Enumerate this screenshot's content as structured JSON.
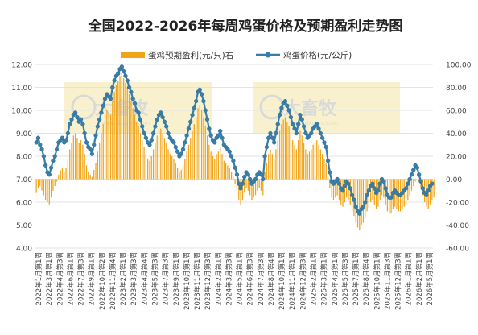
{
  "chart_data": {
    "type": "bar+line",
    "title": "全国2022-2026年每周鸡蛋价格及预期盈利走势图",
    "legend": {
      "placement": "top",
      "bar_label": "蛋鸡预期盈利(元/只)右",
      "line_label": "鸡蛋价格(元/公斤)"
    },
    "watermark": "大畜牧 www.dxumu.com",
    "y_left": {
      "min": 4.0,
      "max": 12.0,
      "ticks": [
        "4.00",
        "5.00",
        "6.00",
        "7.00",
        "8.00",
        "9.00",
        "10.00",
        "11.00",
        "12.00"
      ]
    },
    "y_right": {
      "min": -60,
      "max": 100,
      "ticks": [
        "-60.00",
        "-40.00",
        "-20.00",
        "0.00",
        "20.00",
        "40.00",
        "60.00",
        "80.00",
        "100.00"
      ]
    },
    "x_tick_labels": [
      "2022年1月第1周",
      "2022年3月第1周",
      "2022年4月第3周",
      "2022年6月第1周",
      "2022年7月第3周",
      "2022年9月第1周",
      "2022年10月第2周",
      "2022年11月第4周",
      "2023年2月第1周",
      "2023年3月第3周",
      "2023年4月第4周",
      "2023年5月第3周",
      "2023年7月第3周",
      "2023年9月第1周",
      "2023年10月第1周",
      "2023年11月第1周",
      "2023年12月第3周",
      "2024年2月第1周",
      "2024年3月第3周",
      "2024年5月第1周",
      "2024年6月第3周",
      "2024年7月第3周",
      "2024年8月第4周",
      "2024年10月第1周",
      "2024年11月第1周",
      "2024年12月第3周",
      "2025年2月第1周",
      "2025年3月第1周",
      "2025年4月第1周",
      "2025年5月第3周",
      "2025年7月第1周",
      "2025年8月第4周",
      "2025年10月第1周",
      "2025年11月第3周",
      "2025年12月第3周",
      "2026年1月第1周",
      "2026年2月第1周",
      "2026年5月第1周"
    ],
    "egg_price": [
      8.6,
      8.8,
      8.5,
      8.3,
      8.0,
      7.6,
      7.3,
      7.2,
      7.5,
      7.8,
      8.0,
      8.3,
      8.6,
      8.7,
      8.8,
      8.6,
      8.7,
      9.0,
      9.4,
      9.6,
      9.8,
      9.9,
      9.7,
      9.5,
      9.6,
      9.4,
      9.0,
      8.6,
      8.4,
      8.3,
      8.1,
      8.5,
      8.9,
      9.3,
      9.6,
      9.9,
      10.2,
      10.5,
      10.7,
      10.6,
      10.5,
      11.0,
      11.3,
      11.5,
      11.6,
      11.8,
      11.9,
      11.7,
      11.5,
      11.3,
      11.0,
      10.8,
      10.5,
      10.3,
      10.0,
      9.9,
      9.6,
      9.3,
      9.0,
      8.8,
      8.6,
      8.5,
      8.7,
      9.0,
      9.3,
      9.6,
      9.8,
      9.9,
      9.7,
      9.5,
      9.3,
      9.0,
      8.8,
      8.7,
      8.6,
      8.4,
      8.2,
      8.0,
      8.1,
      8.3,
      8.6,
      8.9,
      9.2,
      9.5,
      9.8,
      10.1,
      10.4,
      10.8,
      10.9,
      10.7,
      10.4,
      10.0,
      9.6,
      9.2,
      8.9,
      8.7,
      8.6,
      8.8,
      8.9,
      9.1,
      8.8,
      8.5,
      8.4,
      8.3,
      8.2,
      8.0,
      7.8,
      7.5,
      7.2,
      6.8,
      6.6,
      6.8,
      7.1,
      7.3,
      7.2,
      7.0,
      6.8,
      6.9,
      7.0,
      7.2,
      7.3,
      7.2,
      7.0,
      8.0,
      8.4,
      8.8,
      9.0,
      8.8,
      8.6,
      9.0,
      9.4,
      9.8,
      10.1,
      10.3,
      10.4,
      10.2,
      10.0,
      9.7,
      9.4,
      9.2,
      9.0,
      9.4,
      9.8,
      9.6,
      9.3,
      9.0,
      8.8,
      8.9,
      9.0,
      9.2,
      9.3,
      9.4,
      9.2,
      9.0,
      8.8,
      8.6,
      8.4,
      7.8,
      7.3,
      6.9,
      6.8,
      6.9,
      7.0,
      6.8,
      6.6,
      6.5,
      6.7,
      6.9,
      6.8,
      6.6,
      6.3,
      6.1,
      5.8,
      5.6,
      5.5,
      5.7,
      5.8,
      6.0,
      6.3,
      6.5,
      6.7,
      6.8,
      6.6,
      6.4,
      6.5,
      6.8,
      7.0,
      6.9,
      6.6,
      6.3,
      6.2,
      6.2,
      6.4,
      6.5,
      6.4,
      6.3,
      6.3,
      6.4,
      6.5,
      6.6,
      6.8,
      7.0,
      7.2,
      7.4,
      7.6,
      7.5,
      7.2,
      6.9,
      6.6,
      6.4,
      6.3,
      6.5,
      6.7,
      6.8
    ],
    "profit": [
      -12,
      -8,
      -6,
      -10,
      -14,
      -18,
      -20,
      -22,
      -16,
      -10,
      -6,
      -2,
      4,
      8,
      10,
      6,
      10,
      18,
      26,
      32,
      38,
      40,
      36,
      32,
      34,
      30,
      22,
      12,
      6,
      4,
      2,
      8,
      14,
      24,
      32,
      40,
      48,
      56,
      60,
      58,
      56,
      68,
      76,
      82,
      86,
      90,
      92,
      88,
      84,
      80,
      74,
      68,
      62,
      56,
      50,
      46,
      40,
      34,
      28,
      22,
      18,
      16,
      20,
      26,
      32,
      38,
      42,
      44,
      40,
      36,
      32,
      26,
      22,
      20,
      18,
      14,
      10,
      6,
      8,
      12,
      18,
      24,
      30,
      36,
      42,
      48,
      54,
      62,
      64,
      60,
      54,
      46,
      38,
      30,
      24,
      20,
      18,
      22,
      24,
      28,
      22,
      16,
      14,
      12,
      10,
      6,
      2,
      -4,
      -10,
      -18,
      -22,
      -18,
      -12,
      -8,
      -10,
      -14,
      -18,
      -16,
      -14,
      -10,
      -8,
      -10,
      -14,
      6,
      14,
      22,
      26,
      22,
      18,
      26,
      34,
      42,
      48,
      52,
      54,
      50,
      46,
      40,
      34,
      30,
      26,
      34,
      42,
      38,
      32,
      26,
      22,
      24,
      26,
      30,
      32,
      34,
      30,
      26,
      22,
      18,
      14,
      2,
      -8,
      -16,
      -18,
      -16,
      -14,
      -18,
      -22,
      -24,
      -20,
      -16,
      -18,
      -22,
      -28,
      -32,
      -38,
      -42,
      -44,
      -40,
      -38,
      -34,
      -28,
      -24,
      -20,
      -18,
      -22,
      -26,
      -24,
      -18,
      -14,
      -16,
      -22,
      -28,
      -30,
      -30,
      -26,
      -24,
      -26,
      -28,
      -28,
      -26,
      -24,
      -22,
      -18,
      -14,
      -10,
      -6,
      -2,
      0,
      -2,
      -8,
      -14,
      -20,
      -24,
      -26,
      -22,
      -18,
      -16
    ]
  }
}
